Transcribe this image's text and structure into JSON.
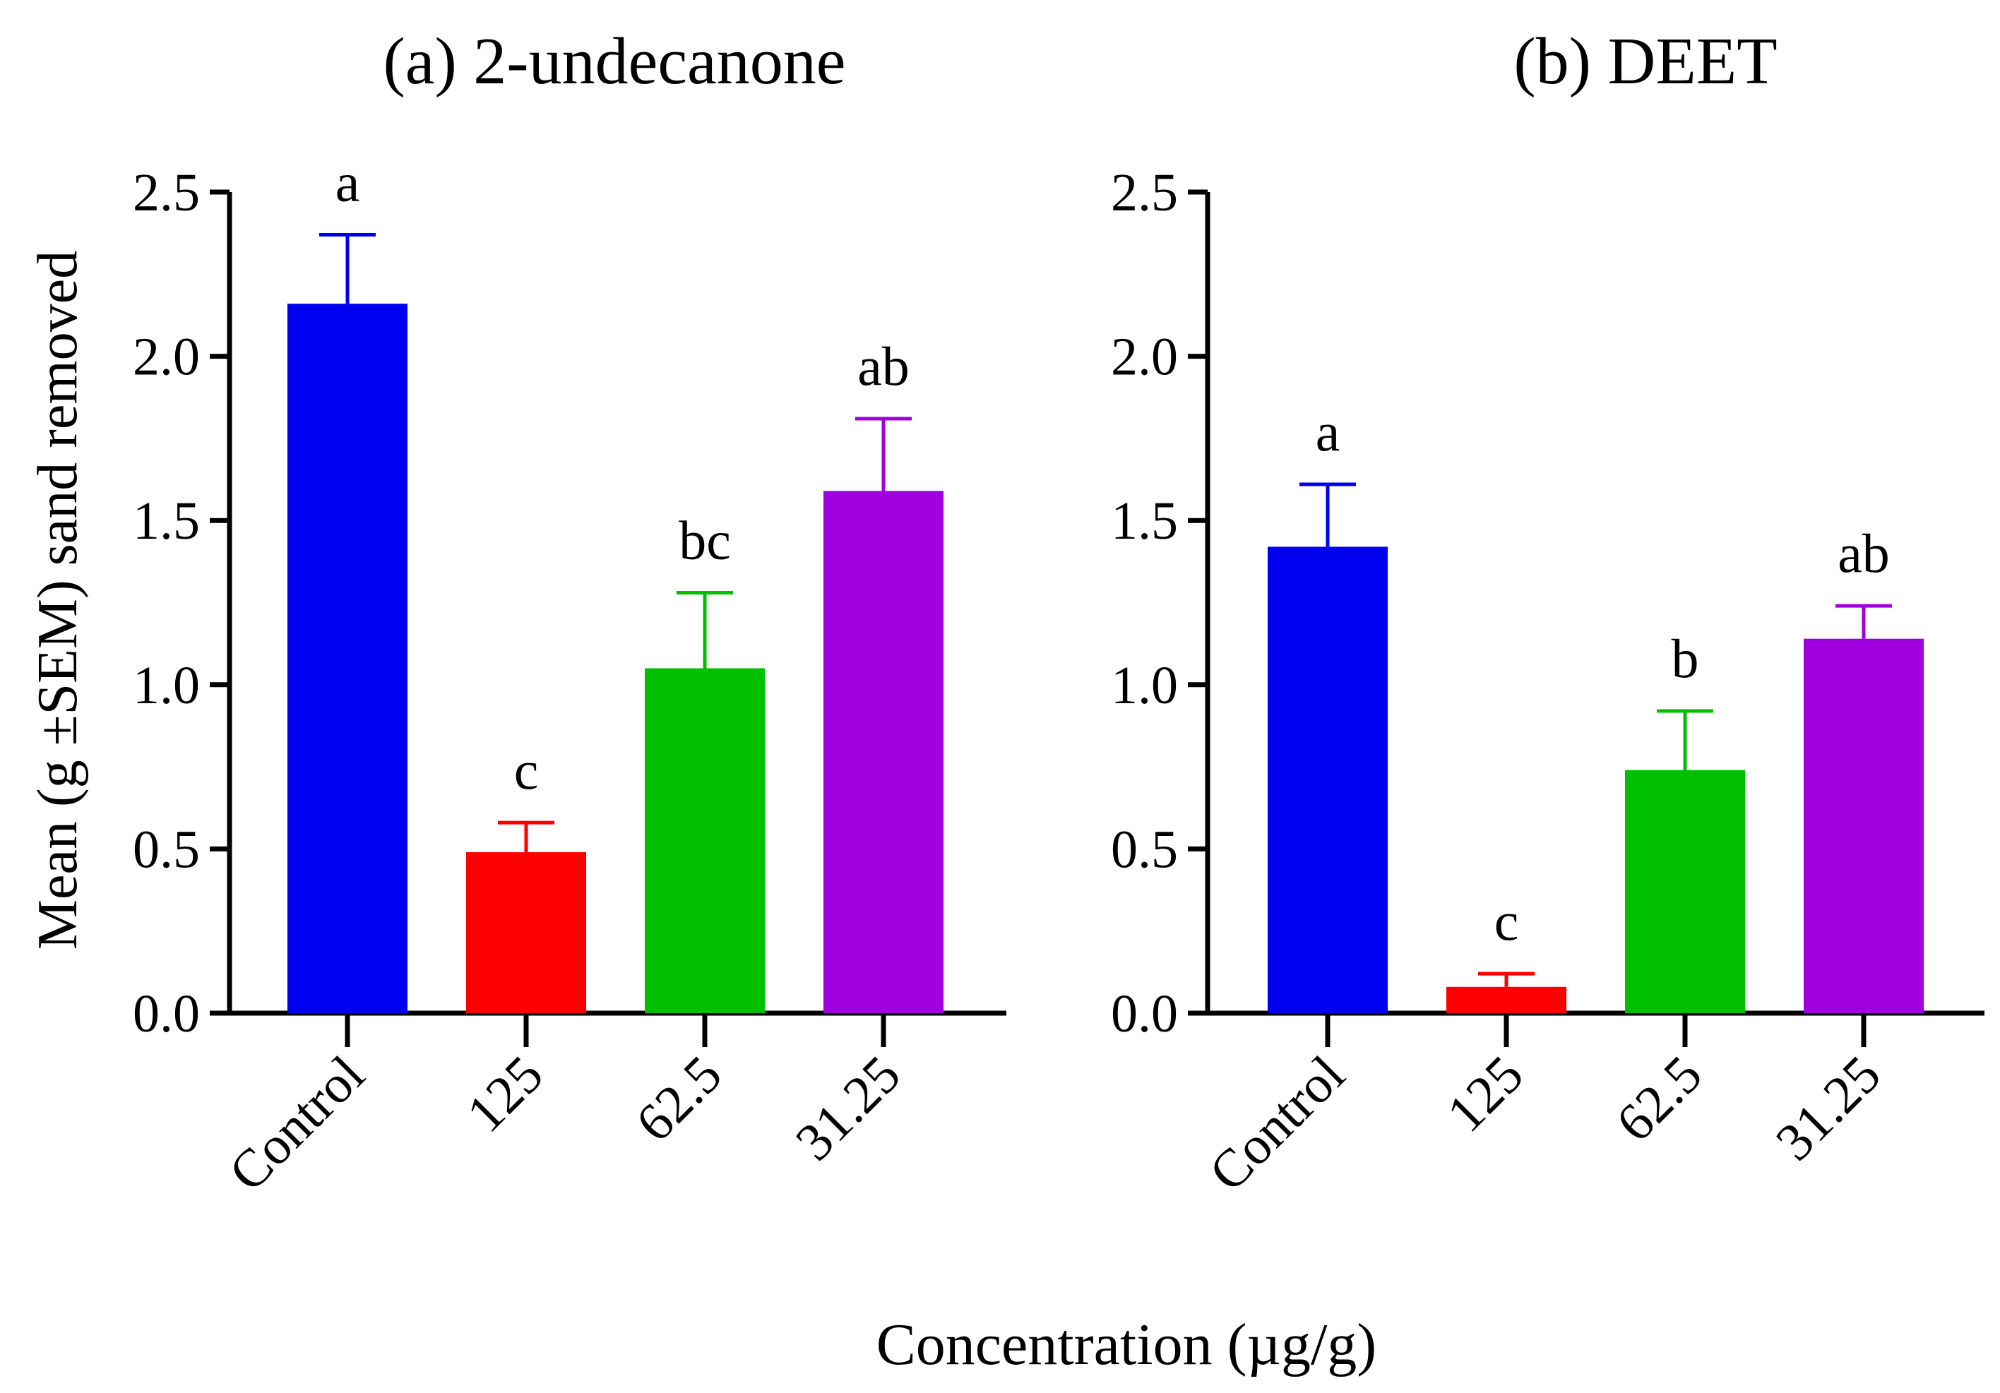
{
  "chart_data": [
    {
      "type": "bar",
      "title": "(a) 2-undecanone",
      "categories": [
        "Control",
        "125",
        "62.5",
        "31.25"
      ],
      "values": [
        2.16,
        0.49,
        1.05,
        1.59
      ],
      "errors": [
        0.21,
        0.09,
        0.23,
        0.22
      ],
      "letters": [
        "a",
        "c",
        "bc",
        "ab"
      ],
      "colors": [
        "#0000f0",
        "#ff0000",
        "#00c000",
        "#a000e0"
      ],
      "ylabel": "Mean (g ±SEM) sand removed",
      "yticks": [
        "0.0",
        "0.5",
        "1.0",
        "1.5",
        "2.0",
        "2.5"
      ],
      "ylim": [
        0,
        2.5
      ]
    },
    {
      "type": "bar",
      "title": "(b) DEET",
      "categories": [
        "Control",
        "125",
        "62.5",
        "31.25"
      ],
      "values": [
        1.42,
        0.08,
        0.74,
        1.14
      ],
      "errors": [
        0.19,
        0.04,
        0.18,
        0.1
      ],
      "letters": [
        "a",
        "c",
        "b",
        "ab"
      ],
      "colors": [
        "#0000f0",
        "#ff0000",
        "#00c000",
        "#a000e0"
      ],
      "ylabel": "",
      "yticks": [
        "0.0",
        "0.5",
        "1.0",
        "1.5",
        "2.0",
        "2.5"
      ],
      "ylim": [
        0,
        2.5
      ]
    }
  ],
  "figure": {
    "xlabel": "Concentration (µg/g)"
  }
}
